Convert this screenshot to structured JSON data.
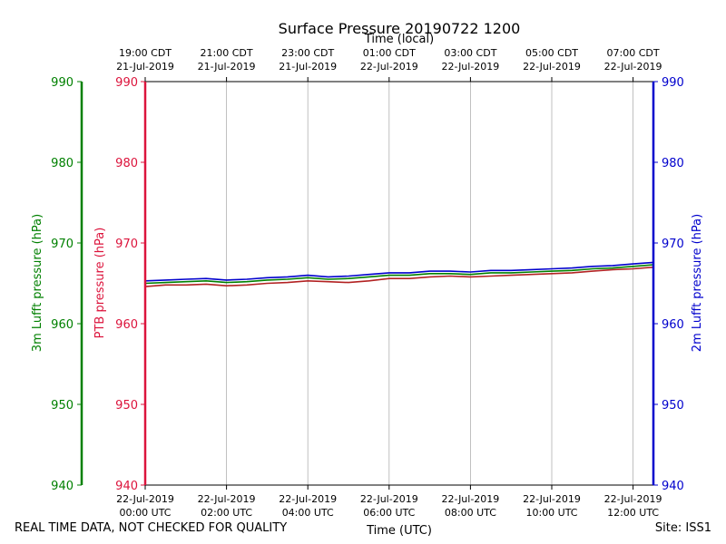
{
  "chart_data": {
    "type": "line",
    "title": "Surface Pressure 20190722 1200",
    "xlabel_bottom": "Time (UTC)",
    "xlabel_top": "Time (local)",
    "x_range_hours": [
      0,
      12.5
    ],
    "ylim": [
      940,
      990
    ],
    "y_ticks": [
      940,
      950,
      960,
      970,
      980,
      990
    ],
    "grid": "vertical",
    "axes": {
      "left_outer": {
        "label": "3m Lufft pressure (hPa)",
        "color": "#008000"
      },
      "left_inner": {
        "label": "PTB pressure (hPa)",
        "color": "#dc143c"
      },
      "right": {
        "label": "2m Lufft pressure (hPa)",
        "color": "#0000cd"
      }
    },
    "bottom_ticks": [
      {
        "hour": 0,
        "line1": "22-Jul-2019",
        "line2": "00:00 UTC"
      },
      {
        "hour": 2,
        "line1": "22-Jul-2019",
        "line2": "02:00 UTC"
      },
      {
        "hour": 4,
        "line1": "22-Jul-2019",
        "line2": "04:00 UTC"
      },
      {
        "hour": 6,
        "line1": "22-Jul-2019",
        "line2": "06:00 UTC"
      },
      {
        "hour": 8,
        "line1": "22-Jul-2019",
        "line2": "08:00 UTC"
      },
      {
        "hour": 10,
        "line1": "22-Jul-2019",
        "line2": "10:00 UTC"
      },
      {
        "hour": 12,
        "line1": "22-Jul-2019",
        "line2": "12:00 UTC"
      }
    ],
    "top_ticks": [
      {
        "hour": 0,
        "line1": "19:00 CDT",
        "line2": "21-Jul-2019"
      },
      {
        "hour": 2,
        "line1": "21:00 CDT",
        "line2": "21-Jul-2019"
      },
      {
        "hour": 4,
        "line1": "23:00 CDT",
        "line2": "21-Jul-2019"
      },
      {
        "hour": 6,
        "line1": "01:00 CDT",
        "line2": "22-Jul-2019"
      },
      {
        "hour": 8,
        "line1": "03:00 CDT",
        "line2": "22-Jul-2019"
      },
      {
        "hour": 10,
        "line1": "05:00 CDT",
        "line2": "22-Jul-2019"
      },
      {
        "hour": 12,
        "line1": "07:00 CDT",
        "line2": "22-Jul-2019"
      }
    ],
    "series": [
      {
        "name": "PTB pressure",
        "color": "#b22222",
        "x": [
          0,
          0.5,
          1,
          1.5,
          2,
          2.5,
          3,
          3.5,
          4,
          4.5,
          5,
          5.5,
          6,
          6.5,
          7,
          7.5,
          8,
          8.5,
          9,
          9.5,
          10,
          10.5,
          11,
          11.5,
          12,
          12.5
        ],
        "values": [
          964.6,
          964.8,
          964.8,
          964.9,
          964.7,
          964.8,
          965.0,
          965.1,
          965.3,
          965.2,
          965.1,
          965.3,
          965.6,
          965.6,
          965.8,
          965.9,
          965.8,
          965.9,
          966.0,
          966.1,
          966.2,
          966.3,
          966.5,
          966.7,
          966.8,
          967.0
        ]
      },
      {
        "name": "3m Lufft pressure",
        "color": "#008000",
        "x": [
          0,
          0.5,
          1,
          1.5,
          2,
          2.5,
          3,
          3.5,
          4,
          4.5,
          5,
          5.5,
          6,
          6.5,
          7,
          7.5,
          8,
          8.5,
          9,
          9.5,
          10,
          10.5,
          11,
          11.5,
          12,
          12.5
        ],
        "values": [
          965.0,
          965.1,
          965.2,
          965.3,
          965.1,
          965.2,
          965.4,
          965.5,
          965.7,
          965.5,
          965.6,
          965.8,
          966.0,
          966.0,
          966.2,
          966.2,
          966.1,
          966.3,
          966.3,
          966.4,
          966.5,
          966.6,
          966.8,
          966.9,
          967.1,
          967.3
        ]
      },
      {
        "name": "2m Lufft pressure",
        "color": "#0000cd",
        "x": [
          0,
          0.5,
          1,
          1.5,
          2,
          2.5,
          3,
          3.5,
          4,
          4.5,
          5,
          5.5,
          6,
          6.5,
          7,
          7.5,
          8,
          8.5,
          9,
          9.5,
          10,
          10.5,
          11,
          11.5,
          12,
          12.5
        ],
        "values": [
          965.3,
          965.4,
          965.5,
          965.6,
          965.4,
          965.5,
          965.7,
          965.8,
          966.0,
          965.8,
          965.9,
          966.1,
          966.3,
          966.3,
          966.5,
          966.5,
          966.4,
          966.6,
          966.6,
          966.7,
          966.8,
          966.9,
          967.1,
          967.2,
          967.4,
          967.6
        ]
      }
    ]
  },
  "footer": {
    "quality_note": "REAL TIME DATA, NOT CHECKED FOR QUALITY",
    "site": "Site: ISS1"
  }
}
